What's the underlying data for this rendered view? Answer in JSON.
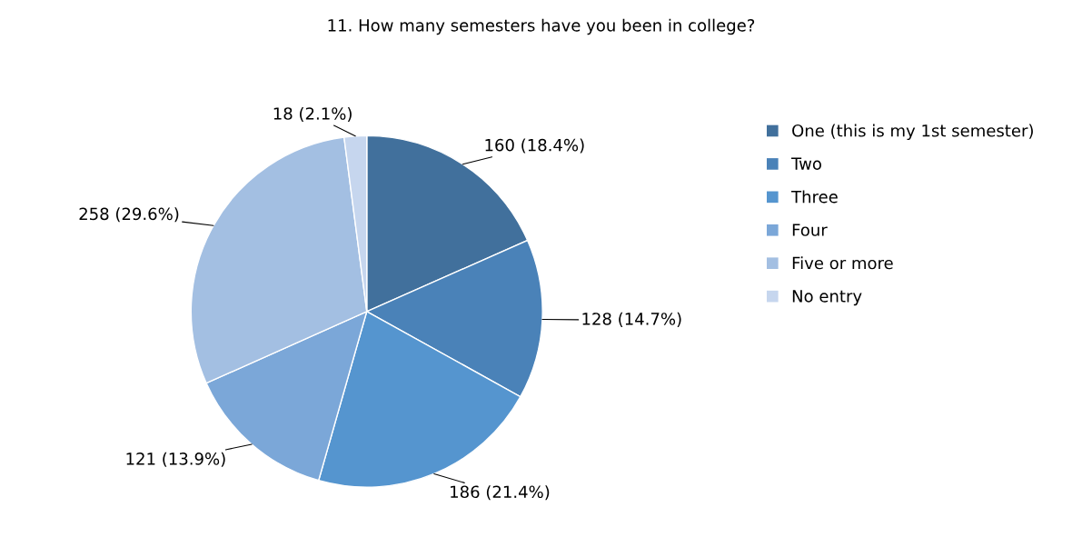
{
  "chart_data": {
    "type": "pie",
    "title": "11. How many semesters have you been in college?",
    "categories": [
      "One (this is my 1st semester)",
      "Two",
      "Three",
      "Four",
      "Five or more",
      "No entry"
    ],
    "values": [
      160,
      128,
      186,
      121,
      258,
      18
    ],
    "value_labels": [
      "160 (18.4%)",
      "128 (14.7%)",
      "186 (21.4%)",
      "121 (13.9%)",
      "258 (29.6%)",
      "18 (2.1%)"
    ],
    "colors": [
      "#41709c",
      "#4a82b8",
      "#5595cf",
      "#7ba7d8",
      "#a3bfe2",
      "#c6d6ee"
    ],
    "legend": "right"
  }
}
